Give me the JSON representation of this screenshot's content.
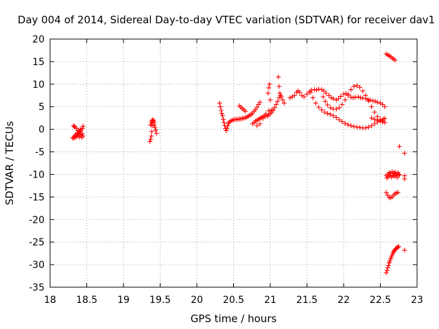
{
  "chart_data": {
    "type": "scatter",
    "title": "Day 004 of 2014, Sidereal Day-to-day VTEC variation (SDTVAR) for receiver dav1",
    "xlabel": "GPS time / hours",
    "ylabel": "SDTVAR / TECUs",
    "xlim": [
      18,
      23
    ],
    "ylim": [
      -35,
      20
    ],
    "xticks": [
      18,
      18.5,
      19,
      19.5,
      20,
      20.5,
      21,
      21.5,
      22,
      22.5,
      23
    ],
    "xtick_labels": [
      "18",
      "18.5",
      "19",
      "19.5",
      "20",
      "20.5",
      "21",
      "21.5",
      "22",
      "22.5",
      "23"
    ],
    "yticks": [
      -35,
      -30,
      -25,
      -20,
      -15,
      -10,
      -5,
      0,
      5,
      10,
      15,
      20
    ],
    "ytick_labels": [
      "-35",
      "-30",
      "-25",
      "-20",
      "-15",
      "-10",
      "-5",
      "0",
      "5",
      "10",
      "15",
      "20"
    ],
    "marker": "+",
    "color": "#ff0000",
    "grid": "dotted",
    "legend": "none",
    "segments": [
      {
        "name": "arc-18.3",
        "x": [
          18.31,
          18.32,
          18.33,
          18.34,
          18.35,
          18.36,
          18.37,
          18.38,
          18.39,
          18.4,
          18.41,
          18.42,
          18.43,
          18.44,
          18.45,
          18.32,
          18.34,
          18.36,
          18.38,
          18.4,
          18.42,
          18.44,
          18.33,
          18.37,
          18.41,
          18.45
        ],
        "y": [
          -2.0,
          -1.8,
          -1.5,
          -1.9,
          -1.2,
          -1.6,
          -0.8,
          -1.4,
          -1.0,
          -1.7,
          -0.5,
          -1.2,
          -1.8,
          -1.0,
          -1.5,
          0.8,
          0.5,
          0.2,
          -0.3,
          -0.6,
          -0.2,
          0.2,
          0.6,
          -0.9,
          0.0,
          0.7
        ]
      },
      {
        "name": "arc-19.4",
        "x": [
          19.36,
          19.37,
          19.38,
          19.385,
          19.39,
          19.395,
          19.4,
          19.405,
          19.41,
          19.415,
          19.42,
          19.43,
          19.44,
          19.45,
          19.37,
          19.38,
          19.39
        ],
        "y": [
          -2.7,
          -2.2,
          -1.5,
          -0.5,
          0.8,
          1.5,
          1.9,
          2.1,
          1.8,
          1.5,
          1.0,
          0.4,
          -0.2,
          -0.9,
          1.0,
          1.6,
          2.0
        ]
      },
      {
        "name": "arc-20.3",
        "x": [
          20.31,
          20.32,
          20.33,
          20.34,
          20.35,
          20.36,
          20.37,
          20.38,
          20.39,
          20.4,
          20.41,
          20.42,
          20.43,
          20.44,
          20.46,
          20.48,
          20.5,
          20.52,
          20.54,
          20.56,
          20.58,
          20.6,
          20.62,
          20.64,
          20.66,
          20.68,
          20.7,
          20.72,
          20.74,
          20.76,
          20.78,
          20.8,
          20.82,
          20.84,
          20.86
        ],
        "y": [
          5.8,
          5.0,
          4.2,
          3.5,
          3.0,
          2.2,
          1.5,
          0.8,
          0.2,
          -0.3,
          0.2,
          0.8,
          1.3,
          1.6,
          1.8,
          2.0,
          2.1,
          2.2,
          2.2,
          2.2,
          2.3,
          2.3,
          2.4,
          2.5,
          2.5,
          2.7,
          2.9,
          3.1,
          3.3,
          3.6,
          4.0,
          4.4,
          4.9,
          5.5,
          6.0
        ]
      },
      {
        "name": "arc-20.6",
        "x": [
          20.58,
          20.6,
          20.62,
          20.64,
          20.66
        ],
        "y": [
          5.2,
          4.9,
          4.6,
          4.3,
          4.0
        ]
      },
      {
        "name": "arc-20.8",
        "x": [
          20.76,
          20.78,
          20.8,
          20.82,
          20.84,
          20.86,
          20.88,
          20.9,
          20.92,
          20.94,
          20.96,
          20.98,
          21.0,
          21.02,
          21.04,
          21.06,
          21.08,
          21.1,
          21.12,
          21.14,
          20.82,
          20.86,
          20.9,
          20.94,
          20.98,
          21.02
        ],
        "y": [
          1.2,
          1.5,
          1.8,
          2.0,
          2.2,
          2.4,
          2.6,
          2.8,
          3.0,
          3.0,
          2.9,
          3.2,
          3.5,
          3.8,
          4.2,
          4.8,
          5.5,
          6.2,
          7.0,
          7.5,
          0.8,
          1.2,
          2.4,
          3.4,
          4.1,
          4.3
        ]
      },
      {
        "name": "arc-21-spikes",
        "x": [
          20.97,
          20.98,
          20.99,
          21.0,
          21.11,
          21.12,
          21.13,
          21.15,
          21.17,
          21.19
        ],
        "y": [
          8.0,
          9.2,
          10.0,
          6.5,
          11.6,
          9.5,
          8.0,
          7.2,
          6.5,
          5.8
        ]
      },
      {
        "name": "arc-21.3-upper",
        "x": [
          21.27,
          21.3,
          21.33,
          21.36,
          21.38,
          21.4,
          21.43,
          21.46,
          21.5,
          21.53,
          21.56,
          21.6,
          21.63,
          21.66,
          21.7,
          21.73,
          21.76,
          21.8,
          21.83,
          21.86,
          21.9,
          21.93,
          21.96,
          22.0,
          22.03,
          22.06,
          22.1,
          22.13,
          22.16,
          22.2,
          22.23,
          22.26,
          22.3,
          22.33,
          22.36,
          22.4,
          22.43,
          22.46,
          22.5,
          22.53,
          22.56
        ],
        "y": [
          7.0,
          7.2,
          7.5,
          8.2,
          8.5,
          8.2,
          7.5,
          7.2,
          7.8,
          8.3,
          8.7,
          8.8,
          8.7,
          8.9,
          8.8,
          8.5,
          8.0,
          7.5,
          7.0,
          6.8,
          6.5,
          6.8,
          7.3,
          7.8,
          7.9,
          7.5,
          7.1,
          7.0,
          7.1,
          7.2,
          7.0,
          6.9,
          6.8,
          6.6,
          6.5,
          6.3,
          6.2,
          6.0,
          5.8,
          5.5,
          5.0
        ]
      },
      {
        "name": "arc-21.5-loop",
        "x": [
          21.55,
          21.58,
          21.62,
          21.66,
          21.7,
          21.74,
          21.78,
          21.82,
          21.86,
          21.9,
          21.94,
          21.98,
          22.02,
          22.06,
          22.1,
          22.14,
          22.18,
          22.22,
          22.26,
          22.3,
          22.34,
          22.38,
          22.42,
          22.46,
          22.5,
          22.54,
          22.56
        ],
        "y": [
          8.2,
          7.0,
          5.8,
          4.9,
          4.3,
          3.8,
          3.5,
          3.3,
          3.0,
          2.6,
          2.1,
          1.7,
          1.3,
          1.0,
          0.8,
          0.6,
          0.5,
          0.4,
          0.3,
          0.3,
          0.5,
          0.8,
          1.2,
          1.6,
          2.0,
          2.3,
          2.4
        ]
      },
      {
        "name": "arc-21.7-cross",
        "x": [
          21.72,
          21.75,
          21.78,
          21.82,
          21.86,
          21.9,
          21.94,
          21.98,
          22.02,
          22.06,
          22.1,
          22.14,
          22.18,
          22.22,
          22.26,
          22.3,
          22.34,
          22.38,
          22.42,
          22.46,
          22.5,
          22.54
        ],
        "y": [
          7.2,
          6.2,
          5.4,
          4.8,
          4.5,
          4.5,
          4.8,
          5.5,
          6.5,
          7.8,
          8.8,
          9.5,
          9.7,
          9.3,
          8.5,
          7.5,
          6.3,
          5.0,
          3.8,
          2.8,
          2.2,
          1.9
        ]
      },
      {
        "name": "arc-22.4-tail",
        "x": [
          22.38,
          22.42,
          22.46,
          22.5,
          22.53,
          22.56
        ],
        "y": [
          2.5,
          2.2,
          2.0,
          1.8,
          1.6,
          1.5
        ]
      },
      {
        "name": "arc-22.6-top",
        "x": [
          22.58,
          22.6,
          22.62,
          22.64,
          22.66,
          22.68,
          22.7
        ],
        "y": [
          16.7,
          16.5,
          16.3,
          16.1,
          15.8,
          15.6,
          15.3
        ]
      },
      {
        "name": "arc-22.6-mid",
        "x": [
          22.58,
          22.6,
          22.62,
          22.64,
          22.66,
          22.68,
          22.7,
          22.72,
          22.74,
          22.76,
          22.59,
          22.61,
          22.63,
          22.65,
          22.67,
          22.69,
          22.71,
          22.73,
          22.75,
          22.76,
          22.83
        ],
        "y": [
          -10.3,
          -10.0,
          -9.6,
          -9.8,
          -9.4,
          -9.7,
          -9.5,
          -9.9,
          -9.6,
          -10.0,
          -10.8,
          -10.5,
          -10.2,
          -10.6,
          -10.3,
          -10.4,
          -10.1,
          -10.7,
          -10.2,
          -3.8,
          -5.3
        ]
      },
      {
        "name": "arc-22.6-low",
        "x": [
          22.58,
          22.6,
          22.62,
          22.64,
          22.66,
          22.68,
          22.7,
          22.72,
          22.74
        ],
        "y": [
          -14.0,
          -14.6,
          -15.1,
          -15.2,
          -15.0,
          -14.6,
          -14.3,
          -14.1,
          -14.0
        ]
      },
      {
        "name": "arc-22.6-bottom",
        "x": [
          22.58,
          22.59,
          22.6,
          22.61,
          22.62,
          22.63,
          22.64,
          22.65,
          22.66,
          22.67,
          22.68,
          22.69,
          22.7,
          22.71,
          22.72,
          22.73,
          22.74,
          22.75,
          22.83
        ],
        "y": [
          -31.8,
          -31.3,
          -30.7,
          -30.2,
          -29.6,
          -29.2,
          -28.7,
          -28.3,
          -27.9,
          -27.5,
          -27.2,
          -26.9,
          -26.7,
          -26.5,
          -26.4,
          -26.2,
          -26.1,
          -26.0,
          -26.8
        ]
      },
      {
        "name": "arc-22.8-side",
        "x": [
          22.83,
          22.83
        ],
        "y": [
          -10.3,
          -11.0
        ]
      }
    ]
  }
}
